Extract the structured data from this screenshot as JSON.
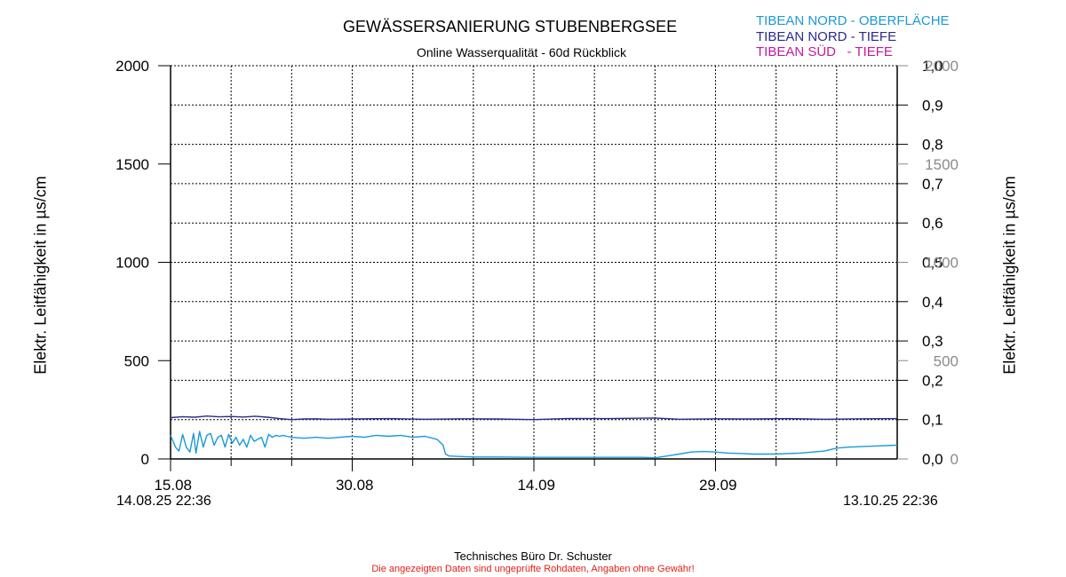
{
  "chart_data": {
    "type": "line",
    "title": "GEWÄSSERSANIERUNG STUBENBERGSEE",
    "subtitle": "Online Wasserqualität - 60d Rückblick",
    "ylabel": "Elektr. Leitfähigkeit in µs/cm",
    "ylabel_right": "Elektr. Leitfähigkeit in µs/cm",
    "ylim": [
      0,
      2000
    ],
    "y_ticks": [
      "0",
      "500",
      "1000",
      "1500",
      "2000"
    ],
    "y2lim": [
      0,
      1.0
    ],
    "y2_ticks": [
      "0,0",
      "0,1",
      "0,2",
      "0,3",
      "0,4",
      "0,5",
      "0,6",
      "0,7",
      "0,8",
      "0,9",
      "1,0"
    ],
    "y3_ticks": [
      "0",
      "500",
      "1000",
      "1500",
      "2000"
    ],
    "x_ticks": [
      "15.08",
      "30.08",
      "14.09",
      "29.09"
    ],
    "x_start_label": "14.08.25 22:36",
    "x_end_label": "13.10.25 22:36",
    "xlim_days": [
      0,
      60
    ],
    "grid": true,
    "legend_position": "top-right",
    "series": [
      {
        "name": "TIBEAN NORD - OBERFLÄCHE",
        "color": "#1a9ad6",
        "x": [
          0,
          0.4,
          0.7,
          1,
          1.3,
          1.6,
          1.9,
          2.1,
          2.4,
          2.7,
          3,
          3.3,
          3.6,
          3.9,
          4.2,
          4.5,
          4.8,
          5.1,
          5.4,
          5.7,
          6,
          6.3,
          6.6,
          6.9,
          7.2,
          7.5,
          7.8,
          8.1,
          8.4,
          8.7,
          9,
          9.3,
          9.6,
          10,
          11,
          12,
          13,
          14,
          15,
          16,
          17,
          18,
          19,
          20,
          21,
          22,
          22.5,
          22.7,
          23,
          24,
          25,
          27,
          30,
          33,
          36,
          39,
          40,
          41,
          42,
          43,
          44,
          45,
          46,
          47,
          48,
          50,
          52,
          54,
          55,
          56,
          58,
          60
        ],
        "values": [
          120,
          60,
          40,
          125,
          60,
          35,
          130,
          30,
          140,
          60,
          120,
          130,
          70,
          110,
          120,
          60,
          125,
          80,
          110,
          70,
          100,
          60,
          120,
          90,
          100,
          110,
          60,
          125,
          110,
          120,
          115,
          120,
          115,
          110,
          105,
          110,
          105,
          110,
          115,
          110,
          120,
          115,
          120,
          110,
          115,
          100,
          70,
          25,
          15,
          12,
          10,
          10,
          8,
          8,
          8,
          8,
          6,
          15,
          25,
          35,
          38,
          35,
          30,
          28,
          25,
          25,
          30,
          40,
          55,
          60,
          65,
          70
        ]
      },
      {
        "name": "TIBEAN NORD - TIEFE",
        "color": "#2b2a8c",
        "x": [
          0,
          1,
          2,
          3,
          4,
          5,
          6,
          7,
          8,
          9,
          10,
          11,
          12,
          13,
          15,
          18,
          21,
          24,
          27,
          30,
          33,
          36,
          40,
          42,
          45,
          48,
          51,
          54,
          57,
          60
        ],
        "values": [
          210,
          215,
          212,
          218,
          214,
          216,
          213,
          217,
          212,
          205,
          200,
          203,
          204,
          202,
          203,
          205,
          202,
          204,
          203,
          200,
          206,
          205,
          208,
          202,
          204,
          203,
          205,
          202,
          204,
          205
        ]
      },
      {
        "name": "TIBEAN SÜD   - TIEFE",
        "color": "#c01b9b",
        "x": [],
        "values": []
      }
    ]
  },
  "footer": {
    "author": "Technisches Büro Dr. Schuster",
    "disclaimer": "Die angezeigten Daten sind ungeprüfte Rohdaten, Angaben ohne Gewähr!"
  }
}
